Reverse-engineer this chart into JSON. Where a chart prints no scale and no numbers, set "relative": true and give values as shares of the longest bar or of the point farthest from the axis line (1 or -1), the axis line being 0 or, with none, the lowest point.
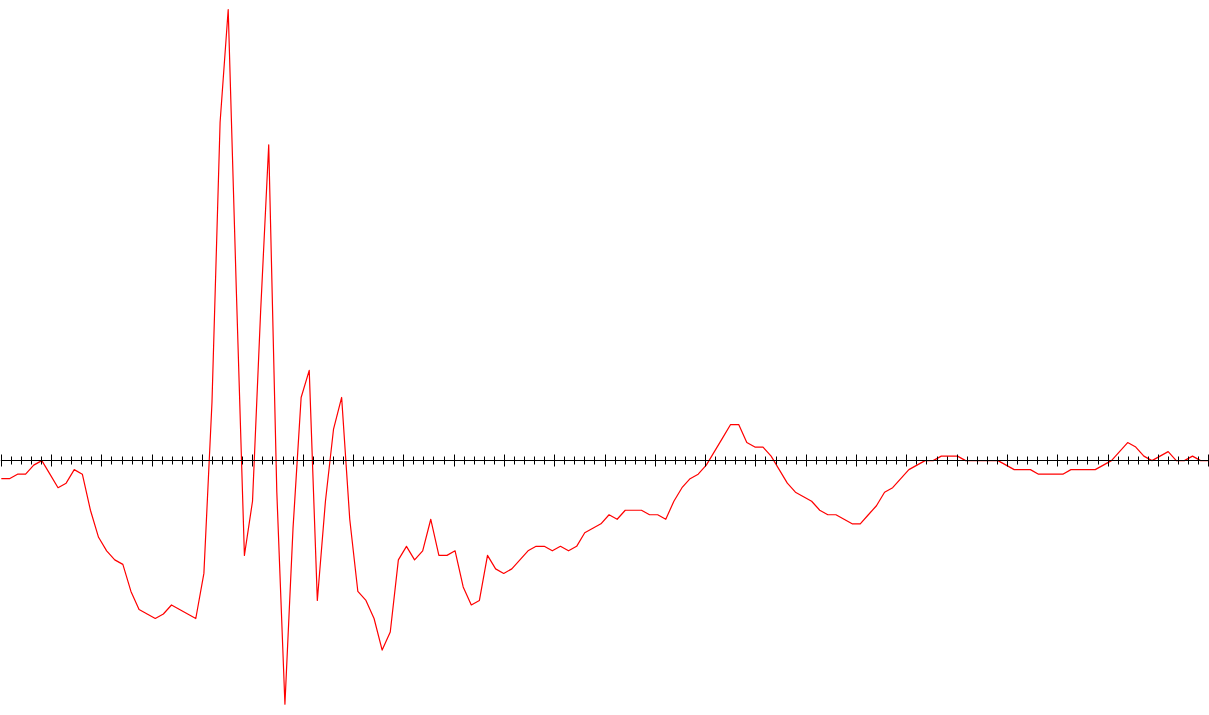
{
  "chart_data": {
    "type": "line",
    "relative": true,
    "color": "#ff0000",
    "categories": [
      null,
      null,
      null,
      null,
      null,
      null,
      null,
      null,
      null,
      null,
      null,
      null,
      null,
      null,
      null,
      null,
      null,
      null,
      null,
      null,
      null,
      null,
      null,
      null,
      null,
      null,
      null,
      null,
      null,
      null,
      null,
      null,
      null,
      null,
      null,
      null,
      null,
      null,
      null,
      null,
      null,
      null,
      null,
      null,
      null,
      null,
      null,
      null,
      null,
      null,
      null,
      null,
      null,
      null,
      null,
      null,
      null,
      null,
      null,
      null,
      null,
      null,
      null,
      null,
      null,
      null,
      null,
      null,
      null,
      null,
      null,
      null,
      null,
      null,
      null,
      null,
      null,
      null,
      null,
      null,
      null,
      null,
      null,
      null,
      null,
      null,
      null,
      null,
      null,
      null,
      null,
      null,
      null,
      null,
      null,
      null,
      null,
      null,
      null,
      null,
      null,
      null,
      null,
      null,
      null,
      null,
      null,
      null,
      null,
      null,
      null,
      null,
      null,
      null,
      null,
      null,
      null,
      null,
      null,
      null,
      null,
      null,
      null,
      null,
      null,
      null,
      null,
      null,
      null,
      null,
      null,
      null,
      null,
      null,
      null,
      null,
      null,
      null,
      null,
      null,
      null,
      null,
      null,
      null,
      null,
      null,
      null,
      null,
      null,
      null
    ],
    "values": [
      -0.04,
      -0.04,
      -0.03,
      -0.03,
      -0.01,
      0,
      -0.03,
      -0.06,
      -0.05,
      -0.02,
      -0.03,
      -0.11,
      -0.17,
      -0.2,
      -0.22,
      -0.23,
      -0.29,
      -0.33,
      -0.34,
      -0.35,
      -0.34,
      -0.32,
      -0.33,
      -0.34,
      -0.35,
      -0.25,
      0.13,
      0.75,
      1.0,
      0.38,
      -0.21,
      -0.09,
      0.33,
      0.7,
      -0.07,
      -0.54,
      -0.15,
      0.14,
      0.2,
      -0.31,
      -0.09,
      0.07,
      0.14,
      -0.13,
      -0.29,
      -0.31,
      -0.35,
      -0.42,
      -0.38,
      -0.22,
      -0.19,
      -0.22,
      -0.2,
      -0.13,
      -0.21,
      -0.21,
      -0.2,
      -0.28,
      -0.32,
      -0.31,
      -0.21,
      -0.24,
      -0.25,
      -0.24,
      -0.22,
      -0.2,
      -0.19,
      -0.19,
      -0.2,
      -0.19,
      -0.2,
      -0.19,
      -0.16,
      -0.15,
      -0.14,
      -0.12,
      -0.13,
      -0.11,
      -0.11,
      -0.11,
      -0.12,
      -0.12,
      -0.13,
      -0.09,
      -0.06,
      -0.04,
      -0.03,
      -0.01,
      0.02,
      0.05,
      0.08,
      0.08,
      0.04,
      0.03,
      0.03,
      0.01,
      -0.02,
      -0.05,
      -0.07,
      -0.08,
      -0.09,
      -0.11,
      -0.12,
      -0.12,
      -0.13,
      -0.14,
      -0.14,
      -0.12,
      -0.1,
      -0.07,
      -0.06,
      -0.04,
      -0.02,
      -0.01,
      0,
      0,
      0.01,
      0.01,
      0.01,
      0,
      0,
      0,
      0,
      0,
      -0.01,
      -0.02,
      -0.02,
      -0.02,
      -0.03,
      -0.03,
      -0.03,
      -0.03,
      -0.02,
      -0.02,
      -0.02,
      -0.02,
      -0.01,
      0,
      0.02,
      0.04,
      0.03,
      0.01,
      0,
      0.01,
      0.02,
      0,
      0,
      0.01,
      0,
      0
    ]
  }
}
